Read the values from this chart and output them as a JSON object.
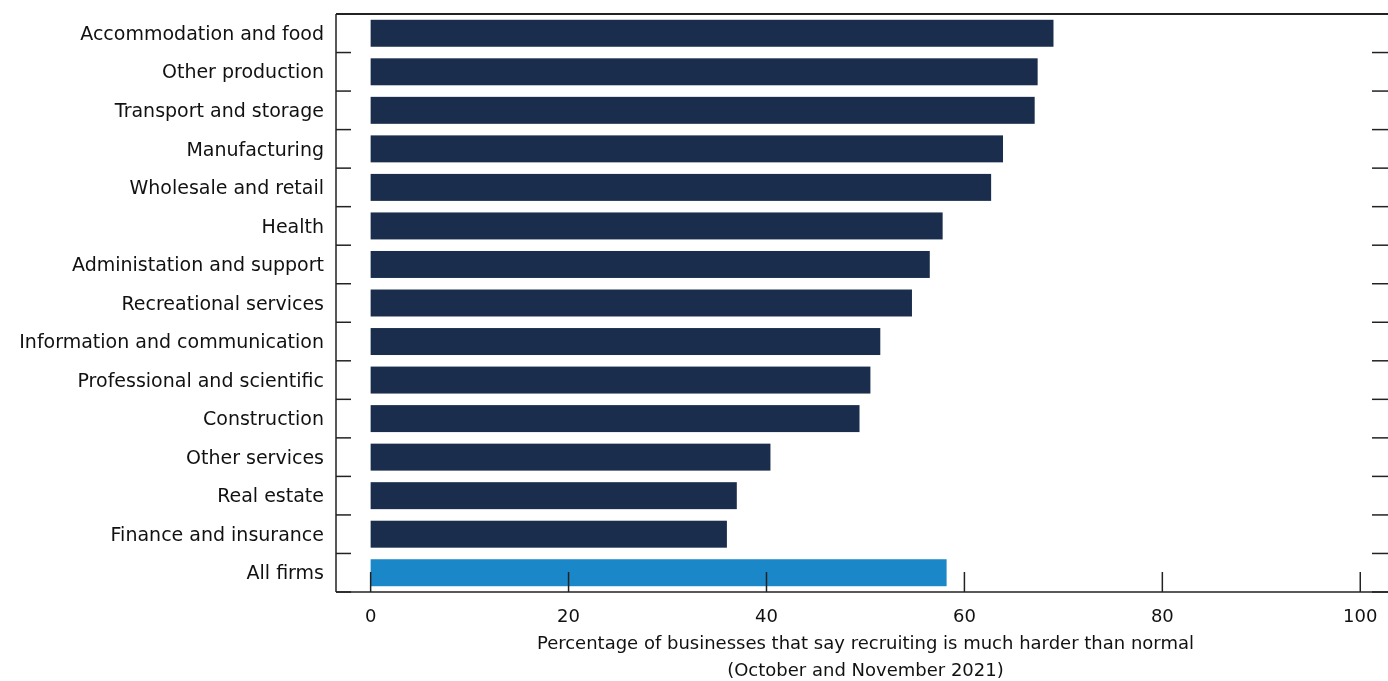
{
  "chart_data": {
    "type": "bar",
    "orientation": "horizontal",
    "xlabel": "Percentage of businesses that say recruiting is much harder than normal\n(October and November 2021)",
    "categories": [
      "Accommodation and food",
      "Other production",
      "Transport and storage",
      "Manufacturing",
      "Wholesale and retail",
      "Health",
      "Administation and support",
      "Recreational services",
      "Information and communication",
      "Professional and scientific",
      "Construction",
      "Other services",
      "Real estate",
      "Finance and insurance",
      "All firms"
    ],
    "values": [
      69.0,
      67.4,
      67.1,
      63.9,
      62.7,
      57.8,
      56.5,
      54.7,
      51.5,
      50.5,
      49.4,
      40.4,
      37.0,
      36.0,
      58.2
    ],
    "colors": [
      "#1b2d4c",
      "#1b2d4c",
      "#1b2d4c",
      "#1b2d4c",
      "#1b2d4c",
      "#1b2d4c",
      "#1b2d4c",
      "#1b2d4c",
      "#1b2d4c",
      "#1b2d4c",
      "#1b2d4c",
      "#1b2d4c",
      "#1b2d4c",
      "#1b2d4c",
      "#1a87c8"
    ],
    "xlim": [
      -3.5,
      102.6
    ],
    "xticks": [
      0,
      20,
      40,
      60,
      80,
      100
    ],
    "grid": false
  }
}
